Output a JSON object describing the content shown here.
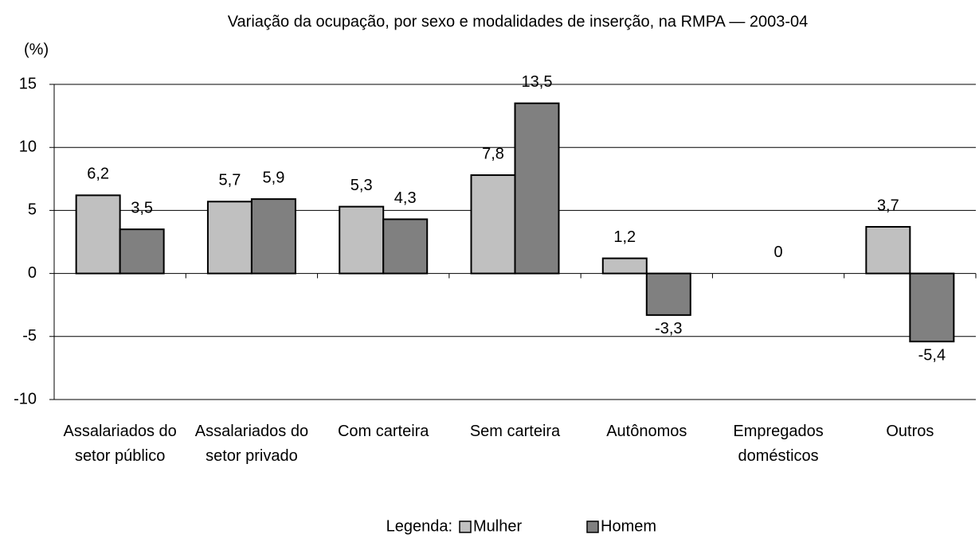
{
  "chart_data": {
    "type": "bar",
    "title": "Variação da ocupação, por sexo e modalidades de inserção, na RMPA — 2003-04",
    "y_label": "(%)",
    "categories": [
      "Assalariados do setor público",
      "Assalariados do setor privado",
      "Com carteira",
      "Sem carteira",
      "Autônomos",
      "Empregados domésticos",
      "Outros"
    ],
    "series": [
      {
        "name": "Mulher",
        "color": "#c0c0c0",
        "values": [
          6.2,
          5.7,
          5.3,
          7.8,
          1.2,
          0,
          3.7
        ],
        "value_labels": [
          "6,2",
          "5,7",
          "5,3",
          "7,8",
          "1,2",
          "0",
          "3,7"
        ]
      },
      {
        "name": "Homem",
        "color": "#808080",
        "values": [
          3.5,
          5.9,
          4.3,
          13.5,
          -3.3,
          null,
          -5.4
        ],
        "value_labels": [
          "3,5",
          "5,9",
          "4,3",
          "13,5",
          "-3,3",
          null,
          "-5,4"
        ]
      }
    ],
    "ylim": [
      -10,
      15
    ],
    "yticks": [
      -10,
      -5,
      0,
      5,
      10,
      15
    ],
    "grid": true,
    "legend_title": "Legenda:",
    "legend_position": "bottom"
  }
}
